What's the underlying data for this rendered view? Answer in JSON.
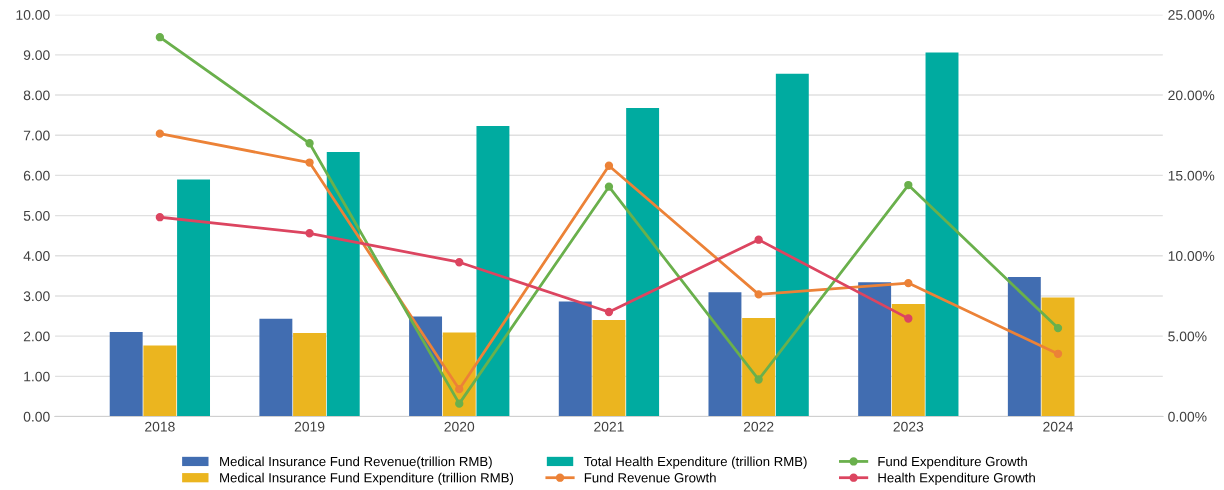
{
  "chart_data": {
    "type": "bar",
    "categories": [
      "2018",
      "2019",
      "2020",
      "2021",
      "2022",
      "2023",
      "2024"
    ],
    "series": [
      {
        "name": "Medical Insurance Fund Revenue(trillion RMB)",
        "color": "#416db1",
        "values": [
          2.1,
          2.43,
          2.49,
          2.86,
          3.09,
          3.34,
          3.47
        ]
      },
      {
        "name": "Medical Insurance Fund Expenditure (trillion RMB)",
        "color": "#ebb51f",
        "values": [
          1.77,
          2.08,
          2.09,
          2.4,
          2.45,
          2.8,
          2.96
        ]
      },
      {
        "name": "Total Health Expenditure (trillion RMB)",
        "color": "#00aba0",
        "values": [
          5.9,
          6.58,
          7.23,
          7.68,
          8.53,
          9.06,
          null
        ]
      },
      {
        "name": "Fund Revenue Growth",
        "type": "line",
        "axis": "y2",
        "color": "#ec8237",
        "values": [
          17.6,
          15.8,
          1.7,
          15.6,
          7.6,
          8.3,
          3.9
        ]
      },
      {
        "name": "Fund Expenditure Growth",
        "type": "line",
        "axis": "y2",
        "color": "#6ab04c",
        "values": [
          23.6,
          17.0,
          0.8,
          14.3,
          2.3,
          14.4,
          5.5
        ]
      },
      {
        "name": "Health Expenditure Growth",
        "type": "line",
        "axis": "y2",
        "color": "#dc4560",
        "values": [
          12.4,
          11.4,
          9.6,
          6.5,
          11.0,
          6.1,
          null
        ]
      }
    ],
    "ylim": [
      0,
      10
    ],
    "yticks": [
      {
        "value": 0,
        "label": "0.00"
      },
      {
        "value": 1,
        "label": "1.00"
      },
      {
        "value": 2,
        "label": "2.00"
      },
      {
        "value": 3,
        "label": "3.00"
      },
      {
        "value": 4,
        "label": "4.00"
      },
      {
        "value": 5,
        "label": "5.00"
      },
      {
        "value": 6,
        "label": "6.00"
      },
      {
        "value": 7,
        "label": "7.00"
      },
      {
        "value": 8,
        "label": "8.00"
      },
      {
        "value": 9,
        "label": "9.00"
      },
      {
        "value": 10,
        "label": "10.00"
      }
    ],
    "y2lim": [
      0,
      25
    ],
    "y2ticks": [
      {
        "value": 0,
        "label": "0.00%"
      },
      {
        "value": 5,
        "label": "5.00%"
      },
      {
        "value": 10,
        "label": "10.00%"
      },
      {
        "value": 15,
        "label": "15.00%"
      },
      {
        "value": 20,
        "label": "20.00%"
      },
      {
        "value": 25,
        "label": "25.00%"
      }
    ],
    "grid": "y",
    "legend": "bottom",
    "marker": "circle",
    "line_style": "solid"
  }
}
